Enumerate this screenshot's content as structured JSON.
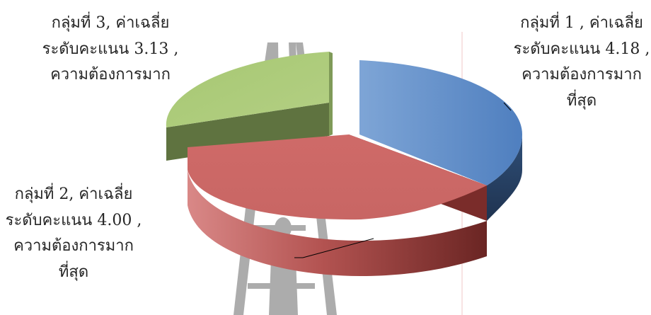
{
  "chart_data": {
    "type": "pie",
    "style": "3d-exploded",
    "slices": [
      {
        "group": 1,
        "value": 4.18,
        "color": "#4f81bd",
        "label_lines": [
          "กลุ่มที่ 1 , ค่าเฉลี่ย",
          "ระดับคะแนน 4.18 ,",
          "ความต้องการมาก",
          "ที่สุด"
        ]
      },
      {
        "group": 2,
        "value": 4.0,
        "color": "#c0504d",
        "label_lines": [
          "กลุ่มที่ 2, ค่าเฉลี่ย",
          "ระดับคะแนน 4.00 ,",
          "ความต้องการมาก",
          "ที่สุด"
        ]
      },
      {
        "group": 3,
        "value": 3.13,
        "color": "#9bbb59",
        "label_lines": [
          "กลุ่มที่ 3, ค่าเฉลี่ย",
          "ระดับคะแนน 3.13 ,",
          "ความต้องการมาก"
        ]
      }
    ]
  }
}
